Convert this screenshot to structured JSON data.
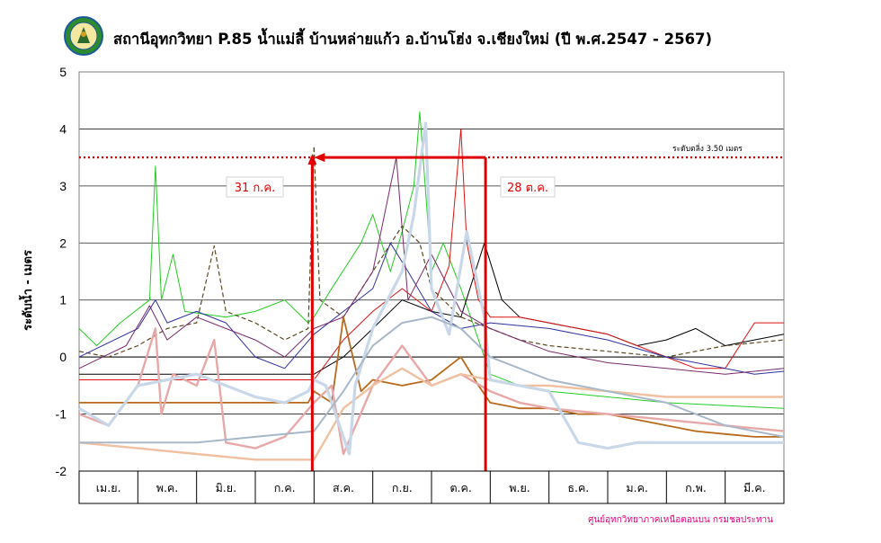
{
  "chart_data": {
    "type": "line",
    "title": "สถานีอุทกวิทยา P.85 น้ำแม่ลี้ บ้านหล่ายแก้ว อ.บ้านโฮ่ง จ.เชียงใหม่ (ปี พ.ศ.2547 - 2567)",
    "ylabel": "ระดับน้ำ - เมตร",
    "ylim": [
      -2,
      5
    ],
    "y_ticks": [
      "5",
      "4",
      "3",
      "2",
      "1",
      "0",
      "-1",
      "-2"
    ],
    "months": [
      "เม.ย.",
      "พ.ค.",
      "มิ.ย.",
      "ก.ค.",
      "ส.ค.",
      "ก.ย.",
      "ต.ค.",
      "พ.ย.",
      "ธ.ค.",
      "ม.ค.",
      "ก.พ.",
      "มี.ค."
    ],
    "x_unit": "months from 1 April",
    "grid": true,
    "critical_level": {
      "label": "ระดับตลิ่ง 3.50  เมตร",
      "value": 3.5,
      "color": "#d00000"
    },
    "period": {
      "start_label": "31 ก.ค.",
      "end_label": "28 ต.ค.",
      "start_month": 3.97,
      "end_month": 6.92,
      "color": "#e00000"
    },
    "series": [
      {
        "color": "#22cc22",
        "width": 1,
        "x": [
          0,
          0.3,
          0.7,
          1.2,
          1.3,
          1.4,
          1.6,
          1.8,
          2.5,
          3.0,
          3.5,
          3.9,
          4.0,
          4.3,
          4.8,
          5.0,
          5.3,
          5.5,
          5.7,
          5.8,
          6.0,
          6.2,
          6.5,
          7.0,
          7.5,
          8.0,
          9.0,
          10.0,
          11.0,
          12.0
        ],
        "y": [
          0.5,
          0.2,
          0.6,
          1.0,
          3.35,
          1.0,
          1.8,
          0.8,
          0.7,
          0.8,
          1.0,
          0.6,
          0.7,
          1.2,
          2.0,
          2.5,
          1.5,
          2.2,
          3.0,
          4.3,
          1.5,
          2.0,
          1.2,
          -0.3,
          -0.5,
          -0.6,
          -0.7,
          -0.8,
          -0.85,
          -0.9
        ]
      },
      {
        "color": "#5a4a20",
        "width": 1.2,
        "dash": "5,3",
        "x": [
          0,
          0.5,
          1.0,
          1.5,
          2.0,
          2.3,
          2.5,
          3.0,
          3.5,
          3.9,
          4.0,
          4.1,
          4.5,
          5.0,
          5.5,
          5.8,
          6.0,
          6.5,
          7.0,
          7.5,
          8.0,
          9.0,
          10.0,
          11.0,
          12.0
        ],
        "y": [
          0.1,
          0.0,
          0.2,
          0.5,
          0.6,
          1.95,
          0.8,
          0.6,
          0.3,
          0.5,
          3.7,
          1.0,
          0.7,
          1.5,
          2.3,
          2.0,
          1.2,
          0.7,
          0.5,
          0.3,
          0.2,
          0.1,
          0.0,
          0.2,
          0.3
        ]
      },
      {
        "color": "#000000",
        "width": 1,
        "x": [
          0,
          1.0,
          2.0,
          3.0,
          4.0,
          4.5,
          5.0,
          5.5,
          6.0,
          6.5,
          6.9,
          7.2,
          7.5,
          8.0,
          8.5,
          9.0,
          9.5,
          10.0,
          10.5,
          11.0,
          11.5,
          12.0
        ],
        "y": [
          -0.3,
          -0.3,
          -0.3,
          -0.3,
          -0.3,
          0.0,
          0.5,
          1.0,
          0.8,
          0.7,
          2.0,
          1.0,
          0.7,
          0.6,
          0.5,
          0.4,
          0.2,
          0.3,
          0.5,
          0.2,
          0.3,
          0.4
        ]
      },
      {
        "color": "#dd1111",
        "width": 1,
        "x": [
          0,
          1.0,
          2.0,
          3.0,
          4.0,
          4.5,
          5.0,
          5.5,
          6.0,
          6.3,
          6.5,
          6.6,
          6.8,
          7.0,
          7.5,
          8.0,
          8.5,
          9.0,
          9.5,
          10.0,
          10.5,
          11.0,
          11.5,
          12.0
        ],
        "y": [
          -0.4,
          -0.4,
          -0.4,
          -0.4,
          -0.4,
          0.3,
          0.8,
          1.2,
          0.8,
          1.6,
          4.0,
          2.0,
          1.0,
          0.7,
          0.7,
          0.6,
          0.5,
          0.4,
          0.2,
          0.0,
          -0.2,
          -0.2,
          0.6,
          0.6
        ]
      },
      {
        "color": "#3030a0",
        "width": 1,
        "x": [
          0,
          1.0,
          1.3,
          1.5,
          2.0,
          2.5,
          3.0,
          3.5,
          4.0,
          4.5,
          5.0,
          5.3,
          5.6,
          6.0,
          6.5,
          7.0,
          8.0,
          9.0,
          10.0,
          11.0,
          11.5,
          12.0
        ],
        "y": [
          0.0,
          0.5,
          1.0,
          0.6,
          0.8,
          0.6,
          0.0,
          -0.2,
          0.4,
          0.8,
          1.2,
          2.0,
          1.5,
          0.8,
          0.5,
          0.6,
          0.5,
          0.3,
          0.0,
          -0.2,
          -0.3,
          -0.25
        ]
      },
      {
        "color": "#7a2a6a",
        "width": 1,
        "x": [
          0,
          0.8,
          1.2,
          1.5,
          2.0,
          2.5,
          3.0,
          3.5,
          4.0,
          4.5,
          5.0,
          5.4,
          5.6,
          6.0,
          6.5,
          7.0,
          7.5,
          8.0,
          9.0,
          10.0,
          11.0,
          12.0
        ],
        "y": [
          -0.2,
          0.2,
          0.9,
          0.3,
          0.7,
          0.5,
          0.3,
          0.0,
          0.5,
          0.7,
          1.5,
          3.5,
          1.0,
          1.8,
          0.8,
          0.5,
          0.3,
          0.1,
          -0.1,
          -0.2,
          -0.3,
          -0.2
        ]
      },
      {
        "color": "#b86a1a",
        "width": 1.8,
        "x": [
          0,
          1.0,
          2.0,
          3.0,
          3.9,
          4.0,
          4.3,
          4.5,
          4.8,
          5.0,
          5.5,
          6.0,
          6.5,
          6.8,
          7.0,
          7.5,
          8.0,
          8.5,
          9.0,
          9.5,
          10.0,
          10.5,
          11.0,
          11.5,
          12.0
        ],
        "y": [
          -0.8,
          -0.8,
          -0.8,
          -0.8,
          -0.8,
          -0.6,
          -0.8,
          0.7,
          -0.6,
          -0.4,
          -0.5,
          -0.4,
          0.0,
          -0.5,
          -0.8,
          -0.9,
          -0.9,
          -1.0,
          -1.0,
          -1.1,
          -1.2,
          -1.3,
          -1.35,
          -1.4,
          -1.4
        ]
      },
      {
        "color": "#e8a8a8",
        "width": 2.4,
        "x": [
          0,
          0.5,
          1.0,
          1.3,
          1.4,
          1.6,
          2.0,
          2.3,
          2.5,
          3.0,
          3.5,
          4.0,
          4.3,
          4.5,
          5.0,
          5.5,
          6.0,
          6.5,
          7.0,
          7.5,
          8.0,
          9.0,
          10.0,
          11.0,
          12.0
        ],
        "y": [
          -1.0,
          -1.2,
          -0.5,
          0.5,
          -1.0,
          -0.3,
          -0.5,
          0.3,
          -1.5,
          -1.6,
          -1.4,
          -0.8,
          -0.5,
          -1.7,
          -0.5,
          0.2,
          -0.5,
          -0.3,
          -0.6,
          -0.8,
          -0.9,
          -1.0,
          -1.1,
          -1.2,
          -1.3
        ]
      },
      {
        "color": "#f0c0a0",
        "width": 2.4,
        "x": [
          0,
          1.0,
          2.0,
          3.0,
          4.0,
          4.5,
          5.0,
          5.5,
          6.0,
          6.5,
          7.0,
          7.5,
          8.0,
          9.0,
          10.0,
          11.0,
          12.0
        ],
        "y": [
          -1.5,
          -1.6,
          -1.7,
          -1.8,
          -1.8,
          -0.9,
          -0.5,
          -0.2,
          -0.5,
          -0.3,
          -0.4,
          -0.5,
          -0.5,
          -0.6,
          -0.7,
          -0.7,
          -0.7
        ]
      },
      {
        "color": "#c8d8e8",
        "width": 3.2,
        "x": [
          0,
          0.5,
          1.0,
          1.5,
          2.0,
          2.5,
          3.0,
          3.5,
          3.9,
          4.0,
          4.2,
          4.6,
          4.7,
          5.0,
          5.5,
          5.7,
          5.9,
          6.0,
          6.3,
          6.6,
          6.9,
          7.0,
          7.5,
          8.0,
          8.5,
          9.0,
          9.5,
          10.0,
          11.0,
          12.0
        ],
        "y": [
          -0.9,
          -1.2,
          -0.5,
          -0.4,
          -0.3,
          -0.5,
          -0.7,
          -0.8,
          -0.6,
          -0.4,
          -0.5,
          -1.7,
          -0.5,
          0.5,
          1.5,
          2.5,
          4.1,
          1.2,
          0.4,
          2.2,
          0.7,
          -0.4,
          -0.5,
          -0.6,
          -1.5,
          -1.6,
          -1.5,
          -1.5,
          -1.5,
          -1.5
        ]
      },
      {
        "color": "#a8b8c8",
        "width": 2,
        "x": [
          0,
          1.0,
          2.0,
          3.0,
          4.0,
          4.5,
          5.0,
          5.5,
          6.0,
          6.5,
          7.0,
          8.0,
          9.0,
          10.0,
          11.0,
          12.0
        ],
        "y": [
          -1.5,
          -1.5,
          -1.5,
          -1.4,
          -1.3,
          -0.6,
          0.2,
          0.6,
          0.7,
          0.5,
          0.0,
          -0.4,
          -0.6,
          -0.8,
          -1.2,
          -1.4
        ]
      }
    ]
  },
  "source_note": "ศูนย์อุทกวิทยาภาคเหนือตอนบน กรมชลประทาน"
}
